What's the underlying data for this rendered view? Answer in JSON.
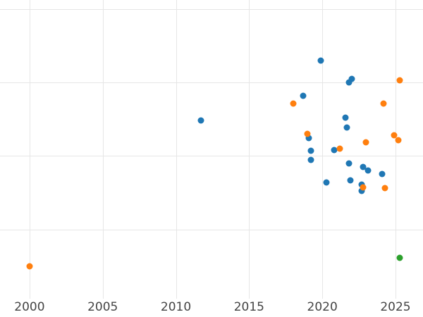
{
  "chart_data": {
    "type": "scatter",
    "title": "",
    "xlabel": "",
    "ylabel": "",
    "xlim": [
      1997.98,
      2026.88
    ],
    "ylim": [
      -0.19,
      4.12
    ],
    "x_ticks": [
      2000,
      2005,
      2010,
      2015,
      2020,
      2025
    ],
    "y_gridline_values": [
      1,
      2,
      3,
      4
    ],
    "grid": true,
    "legend_position": "none",
    "background_color": "#ffffff",
    "grid_color": "#e6e6e6",
    "tick_label_color": "#444444",
    "marker_diameter_px": 9,
    "series": [
      {
        "name": "series-blue",
        "color": "#1f77b4",
        "points": [
          [
            2011.7,
            2.48
          ],
          [
            2018.7,
            2.82
          ],
          [
            2019.9,
            3.3
          ],
          [
            2021.8,
            3.0
          ],
          [
            2022.0,
            3.05
          ],
          [
            2021.6,
            2.52
          ],
          [
            2021.7,
            2.39
          ],
          [
            2019.1,
            2.24
          ],
          [
            2019.2,
            2.07
          ],
          [
            2019.2,
            1.95
          ],
          [
            2020.8,
            2.08
          ],
          [
            2021.8,
            1.9
          ],
          [
            2022.8,
            1.85
          ],
          [
            2023.1,
            1.8
          ],
          [
            2024.1,
            1.75
          ],
          [
            2020.3,
            1.64
          ],
          [
            2021.9,
            1.67
          ],
          [
            2022.7,
            1.61
          ],
          [
            2022.7,
            1.52
          ]
        ]
      },
      {
        "name": "series-orange",
        "color": "#ff7f0e",
        "points": [
          [
            2000.0,
            0.5
          ],
          [
            2018.0,
            2.71
          ],
          [
            2019.0,
            2.3
          ],
          [
            2021.2,
            2.1
          ],
          [
            2023.0,
            2.19
          ],
          [
            2024.9,
            2.28
          ],
          [
            2025.2,
            2.21
          ],
          [
            2024.2,
            2.71
          ],
          [
            2025.3,
            3.03
          ],
          [
            2022.8,
            1.57
          ],
          [
            2024.3,
            1.56
          ]
        ]
      },
      {
        "name": "series-green",
        "color": "#2ca02c",
        "points": [
          [
            2025.3,
            0.61
          ]
        ]
      }
    ]
  }
}
